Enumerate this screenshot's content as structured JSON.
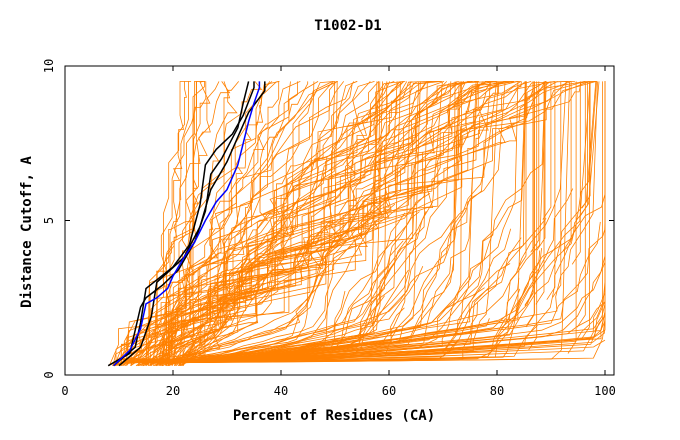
{
  "chart_data": {
    "type": "line",
    "title": "T1002-D1",
    "xlabel": "Percent of Residues (CA)",
    "ylabel": "Distance Cutoff, A",
    "xlim": [
      0,
      100
    ],
    "ylim": [
      0,
      10
    ],
    "xticks": [
      "0",
      "20",
      "40",
      "60",
      "80",
      "100"
    ],
    "yticks": [
      "0",
      "5",
      "10"
    ],
    "grid": false,
    "colors": {
      "background_series": "#ff8000",
      "highlight_black": "#000000",
      "highlight_blue": "#0000ff"
    },
    "highlight_series": [
      {
        "name": "black-1",
        "color": "#000000",
        "points": [
          [
            9,
            0.3
          ],
          [
            13,
            0.9
          ],
          [
            14,
            1.7
          ],
          [
            15,
            2.8
          ],
          [
            20,
            3.5
          ],
          [
            23,
            4.2
          ],
          [
            25,
            5.5
          ],
          [
            26,
            6.8
          ],
          [
            28,
            7.3
          ],
          [
            31,
            7.8
          ],
          [
            33,
            8.4
          ],
          [
            35,
            9.3
          ],
          [
            35,
            9.6
          ]
        ]
      },
      {
        "name": "black-2",
        "color": "#000000",
        "points": [
          [
            10,
            0.3
          ],
          [
            14,
            0.9
          ],
          [
            16,
            1.9
          ],
          [
            17,
            3.0
          ],
          [
            22,
            3.8
          ],
          [
            25,
            4.8
          ],
          [
            27,
            6.0
          ],
          [
            30,
            6.9
          ],
          [
            32,
            7.7
          ],
          [
            34,
            8.5
          ],
          [
            37,
            9.2
          ],
          [
            37,
            9.6
          ]
        ]
      },
      {
        "name": "black-3",
        "color": "#000000",
        "points": [
          [
            8,
            0.3
          ],
          [
            12,
            0.7
          ],
          [
            14,
            2.2
          ],
          [
            15,
            2.5
          ],
          [
            18,
            2.9
          ],
          [
            21,
            3.4
          ],
          [
            24,
            4.3
          ],
          [
            26,
            5.3
          ],
          [
            27,
            6.5
          ],
          [
            29,
            7.0
          ],
          [
            32,
            8.0
          ],
          [
            33,
            8.8
          ],
          [
            34,
            9.6
          ]
        ]
      },
      {
        "name": "blue",
        "color": "#0000ff",
        "points": [
          [
            9,
            0.3
          ],
          [
            12,
            0.8
          ],
          [
            14,
            1.5
          ],
          [
            15,
            2.3
          ],
          [
            17,
            2.5
          ],
          [
            19,
            2.8
          ],
          [
            20,
            3.2
          ],
          [
            22,
            3.8
          ],
          [
            24,
            4.3
          ],
          [
            26,
            5.0
          ],
          [
            28,
            5.6
          ],
          [
            30,
            6.0
          ],
          [
            32,
            6.8
          ],
          [
            33,
            7.5
          ],
          [
            34,
            8.2
          ],
          [
            35,
            8.8
          ],
          [
            36,
            9.3
          ],
          [
            36,
            9.6
          ]
        ]
      }
    ]
  }
}
